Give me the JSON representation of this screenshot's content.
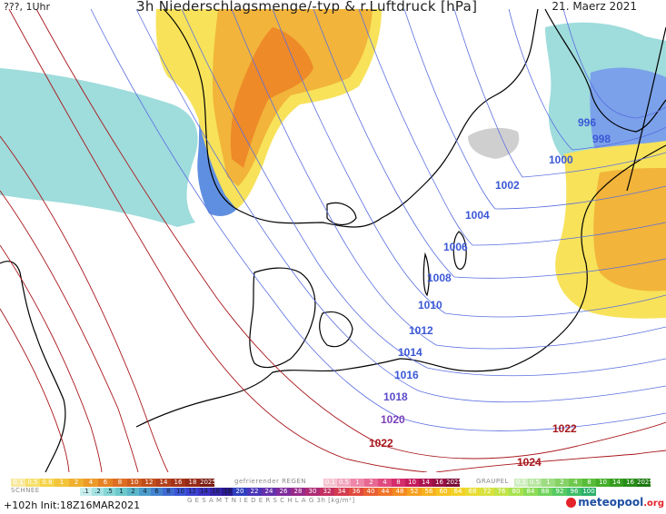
{
  "header": {
    "left": "???, 1Uhr",
    "title": "3h Niederschlagsmenge/-typ & r.Luftdruck [hPa]",
    "date": "21. Maerz 2021"
  },
  "isobars": [
    {
      "label": "996",
      "color": "#3a57d6"
    },
    {
      "label": "998",
      "color": "#3a57d6"
    },
    {
      "label": "1000",
      "color": "#3a57d6"
    },
    {
      "label": "1002",
      "color": "#3a57d6"
    },
    {
      "label": "1004",
      "color": "#3a57d6"
    },
    {
      "label": "1006",
      "color": "#3a57d6"
    },
    {
      "label": "1008",
      "color": "#3a57d6"
    },
    {
      "label": "1010",
      "color": "#3a57d6"
    },
    {
      "label": "1012",
      "color": "#3a57d6"
    },
    {
      "label": "1014",
      "color": "#3a57d6"
    },
    {
      "label": "1016",
      "color": "#3a57d6"
    },
    {
      "label": "1018",
      "color": "#5a4cc8"
    },
    {
      "label": "1020",
      "color": "#7a3fb8"
    },
    {
      "label": "1022",
      "color": "#a8161b"
    },
    {
      "label": "1024",
      "color": "#a8161b"
    }
  ],
  "legend": {
    "rain_scale": [
      "0.1",
      "0.5",
      "0.8",
      "1",
      "2",
      "4",
      "6",
      "8",
      "10",
      "12",
      "14",
      "16",
      "18",
      "2025+"
    ],
    "freezing_rain_label": "gefrierender REGEN",
    "freezing_rain_scale": [
      "0.1",
      "0.5",
      "1",
      "2",
      "4",
      "8",
      "10",
      "14",
      "16",
      "2025+"
    ],
    "graupel_label": "GRAUPEL",
    "graupel_scale": [
      "0.1",
      "0.5",
      "1",
      "2",
      "4",
      "8",
      "10",
      "14",
      "16",
      "2025+"
    ],
    "snow_label": "SCHNEE",
    "snow_scale": [
      ".1",
      ".2",
      ".5",
      "1",
      "2",
      "4",
      "6",
      "8",
      "10",
      "12",
      "14",
      "16",
      "18"
    ],
    "total_label": "G E S A M T N I E D E R S C H L A G   3h  [kg/m²]",
    "total_scale": [
      "20",
      "22",
      "24",
      "26",
      "28",
      "30",
      "32",
      "34",
      "36",
      "40",
      "44",
      "48",
      "52",
      "56",
      "60",
      "64",
      "68",
      "72",
      "76",
      "80",
      "84",
      "88",
      "92",
      "96",
      "100"
    ]
  },
  "footer": {
    "init": "+102h  Init:18Z16MAR2021",
    "logo": "meteopool",
    "logo_tld": ".org"
  },
  "colors": {
    "rain_light": "#f7e25a",
    "rain_mid": "#f2b43a",
    "rain_heavy": "#ee8a28",
    "snow": "#8fd7d7",
    "snow_heavy": "#5f8fe0",
    "land": "#ffffff",
    "coast": "#000000"
  }
}
